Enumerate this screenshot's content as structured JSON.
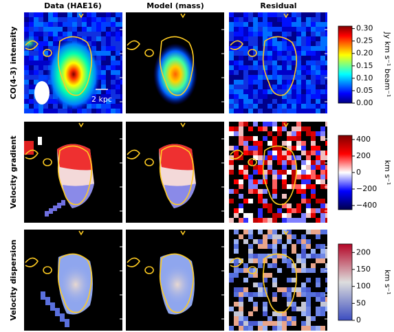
{
  "columns": [
    "Data (HAE16)",
    "Model (mass)",
    "Residual"
  ],
  "annotation": "2 kpc",
  "chart_data": [
    {
      "type": "heatmap",
      "row_label": "CO(4-3) intensity",
      "colorbar_label": "Jy km s⁻¹ beam⁻¹",
      "colormap": "jet",
      "zlim": [
        0,
        0.31
      ],
      "zticks": [
        {
          "value": 0,
          "label": "0.00"
        },
        {
          "value": 0.05,
          "label": "0.05"
        },
        {
          "value": 0.1,
          "label": "0.10"
        },
        {
          "value": 0.15,
          "label": "0.15"
        },
        {
          "value": 0.2,
          "label": "0.20"
        },
        {
          "value": 0.25,
          "label": "0.25"
        },
        {
          "value": 0.3,
          "label": "0.30"
        }
      ]
    },
    {
      "type": "heatmap",
      "row_label": "Velocity gradient",
      "colorbar_label": "km s⁻¹",
      "colormap": "seismic",
      "zlim": [
        -450,
        450
      ],
      "zticks": [
        {
          "value": -400,
          "label": "−400"
        },
        {
          "value": -200,
          "label": "−200"
        },
        0,
        200,
        400
      ]
    },
    {
      "type": "heatmap",
      "row_label": "Velocity dispersion",
      "colorbar_label": "km s⁻¹",
      "colormap": "coolwarm",
      "zlim": [
        0,
        225
      ],
      "zticks": [
        0,
        50,
        100,
        150,
        200
      ]
    }
  ]
}
